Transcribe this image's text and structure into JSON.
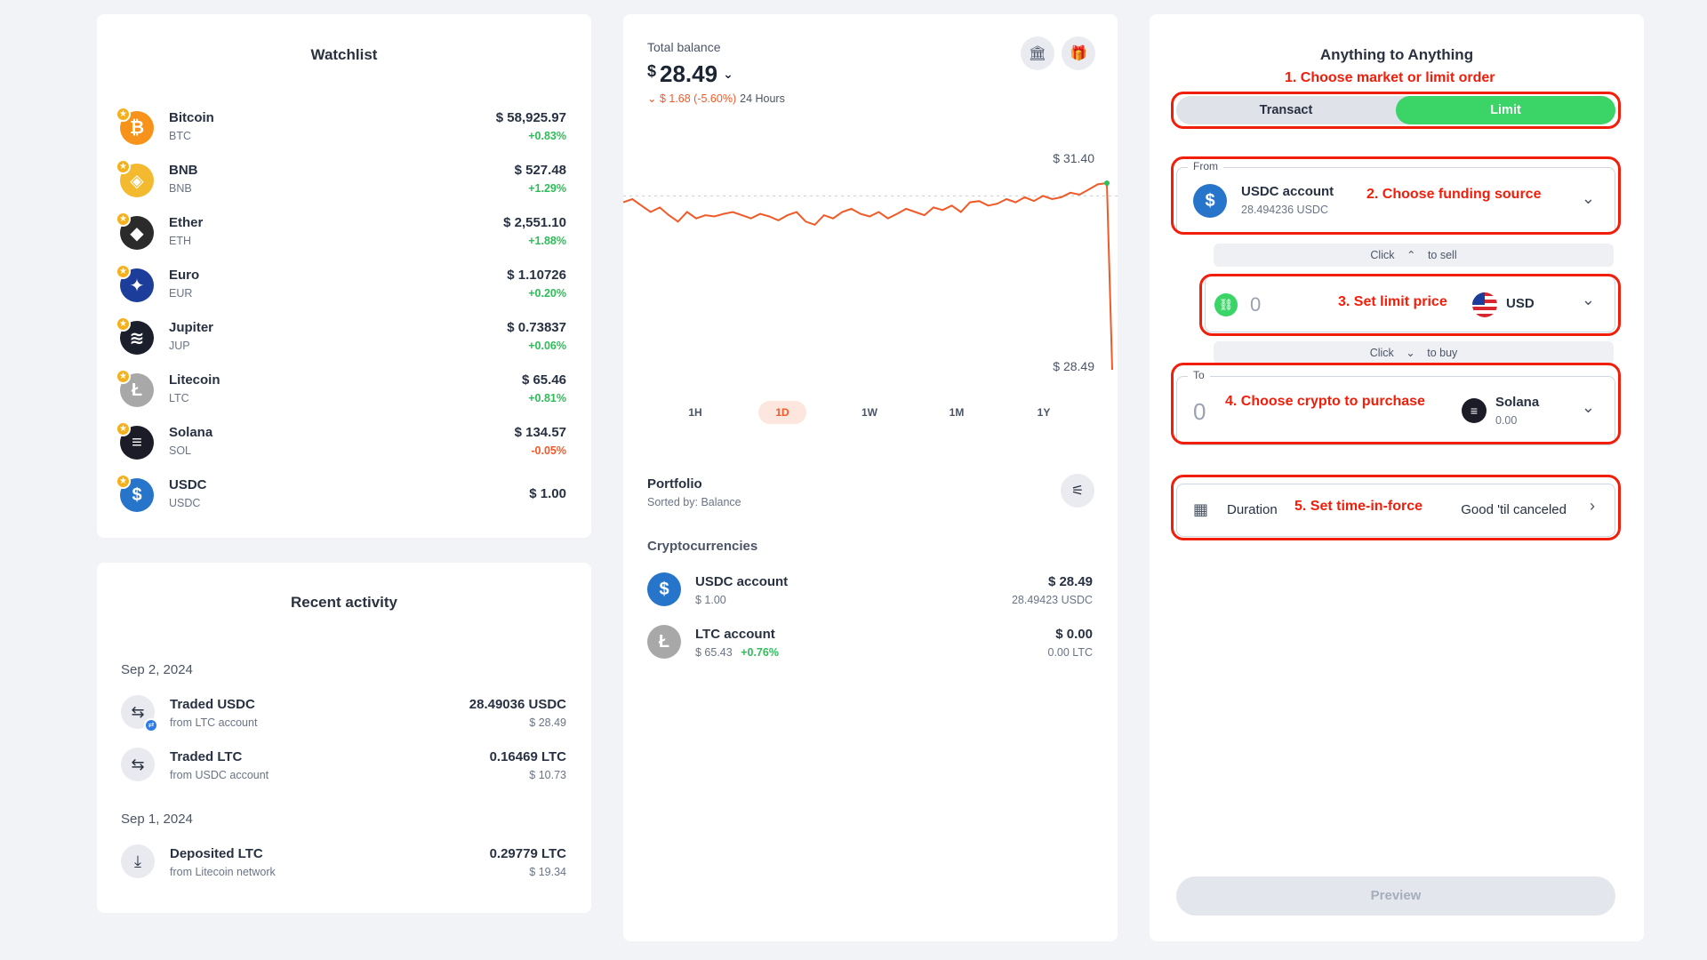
{
  "watchlist": {
    "title": "Watchlist",
    "items": [
      {
        "name": "Bitcoin",
        "symbol": "BTC",
        "price": "$ 58,925.97",
        "change": "+0.83%",
        "trend": "pos",
        "color": "#f7931a",
        "glyph": "₿"
      },
      {
        "name": "BNB",
        "symbol": "BNB",
        "price": "$ 527.48",
        "change": "+1.29%",
        "trend": "pos",
        "color": "#f3ba2f",
        "glyph": "◈"
      },
      {
        "name": "Ether",
        "symbol": "ETH",
        "price": "$ 2,551.10",
        "change": "+1.88%",
        "trend": "pos",
        "color": "#2b2b2b",
        "glyph": "◆"
      },
      {
        "name": "Euro",
        "symbol": "EUR",
        "price": "$ 1.10726",
        "change": "+0.20%",
        "trend": "pos",
        "color": "#1d3d9a",
        "glyph": "✦"
      },
      {
        "name": "Jupiter",
        "symbol": "JUP",
        "price": "$ 0.73837",
        "change": "+0.06%",
        "trend": "pos",
        "color": "#1a1f2b",
        "glyph": "≋"
      },
      {
        "name": "Litecoin",
        "symbol": "LTC",
        "price": "$ 65.46",
        "change": "+0.81%",
        "trend": "pos",
        "color": "#a8a8a8",
        "glyph": "Ł"
      },
      {
        "name": "Solana",
        "symbol": "SOL",
        "price": "$ 134.57",
        "change": "-0.05%",
        "trend": "neg",
        "color": "#1c1c28",
        "glyph": "≡"
      },
      {
        "name": "USDC",
        "symbol": "USDC",
        "price": "$ 1.00",
        "change": "",
        "trend": "pos",
        "color": "#2775ca",
        "glyph": "$"
      }
    ]
  },
  "activity": {
    "title": "Recent activity",
    "groups": [
      {
        "date": "Sep 2, 2024",
        "items": [
          {
            "title": "Traded USDC",
            "sub": "from LTC account",
            "amount": "28.49036 USDC",
            "amount_sub": "$ 28.49",
            "icon": "swap-icon",
            "badge": true
          },
          {
            "title": "Traded LTC",
            "sub": "from USDC account",
            "amount": "0.16469 LTC",
            "amount_sub": "$ 10.73",
            "icon": "swap-icon",
            "badge": false
          }
        ]
      },
      {
        "date": "Sep 1, 2024",
        "items": [
          {
            "title": "Deposited LTC",
            "sub": "from Litecoin network",
            "amount": "0.29779 LTC",
            "amount_sub": "$ 19.34",
            "icon": "download-icon",
            "badge": false
          }
        ]
      }
    ]
  },
  "balance": {
    "label": "Total balance",
    "currency": "$",
    "value": "28.49",
    "change": "$ 1.68 (-5.60%)",
    "period": "24 Hours",
    "chart_high": "$ 31.40",
    "chart_low": "$ 28.49",
    "ranges": [
      "1H",
      "1D",
      "1W",
      "1M",
      "1Y"
    ],
    "active_range": "1D",
    "accent": "#f05a28"
  },
  "portfolio": {
    "title": "Portfolio",
    "sort": "Sorted by: Balance",
    "section": "Cryptocurrencies",
    "items": [
      {
        "name": "USDC account",
        "price": "$ 1.00",
        "price_change": "",
        "value": "$ 28.49",
        "amount": "28.49423 USDC",
        "color": "#2775ca",
        "glyph": "$"
      },
      {
        "name": "LTC account",
        "price": "$ 65.43",
        "price_change": "+0.76%",
        "value": "$ 0.00",
        "amount": "0.00 LTC",
        "color": "#a8a8a8",
        "glyph": "Ł"
      }
    ]
  },
  "trade": {
    "title": "Anything to Anything",
    "tabs": [
      "Transact",
      "Limit"
    ],
    "active_tab": "Limit",
    "from_label": "From",
    "from_account": "USDC account",
    "from_balance": "28.494236 USDC",
    "sell_hint_pre": "Click",
    "sell_hint_post": "to sell",
    "price_value": "0",
    "price_currency": "USD",
    "buy_hint_pre": "Click",
    "buy_hint_post": "to buy",
    "to_label": "To",
    "to_value": "0",
    "to_asset": "Solana",
    "to_balance": "0.00",
    "duration_label": "Duration",
    "duration_value": "Good 'til canceled",
    "preview_label": "Preview",
    "accent": "#3ad467"
  },
  "annotations": {
    "a1": "1. Choose market or limit order",
    "a2": "2. Choose funding source",
    "a3": "3. Set limit price",
    "a4": "4. Choose crypto to purchase",
    "a5": "5. Set time-in-force",
    "color": "#f01e0a"
  },
  "chart_data": {
    "type": "line",
    "series": [
      {
        "values": [
          31.1,
          31.15,
          31.05,
          30.95,
          31.02,
          30.9,
          30.8,
          30.95,
          30.85,
          30.9,
          30.88,
          30.92,
          30.95,
          30.9,
          30.85,
          30.92,
          30.88,
          30.82,
          30.9,
          30.95,
          30.8,
          30.75,
          30.9,
          30.85,
          30.95,
          31.0,
          30.92,
          30.88,
          30.95,
          30.85,
          30.92,
          31.0,
          30.95,
          30.9,
          31.02,
          30.98,
          31.05,
          30.95,
          31.1,
          31.12,
          31.05,
          31.08,
          31.15,
          31.1,
          31.18,
          31.12,
          31.2,
          31.15,
          31.18,
          31.25,
          31.22,
          31.3,
          31.38,
          31.4,
          28.49
        ]
      }
    ],
    "ylim": [
      28.49,
      31.4
    ],
    "reference_line": 31.2,
    "grid": false
  }
}
